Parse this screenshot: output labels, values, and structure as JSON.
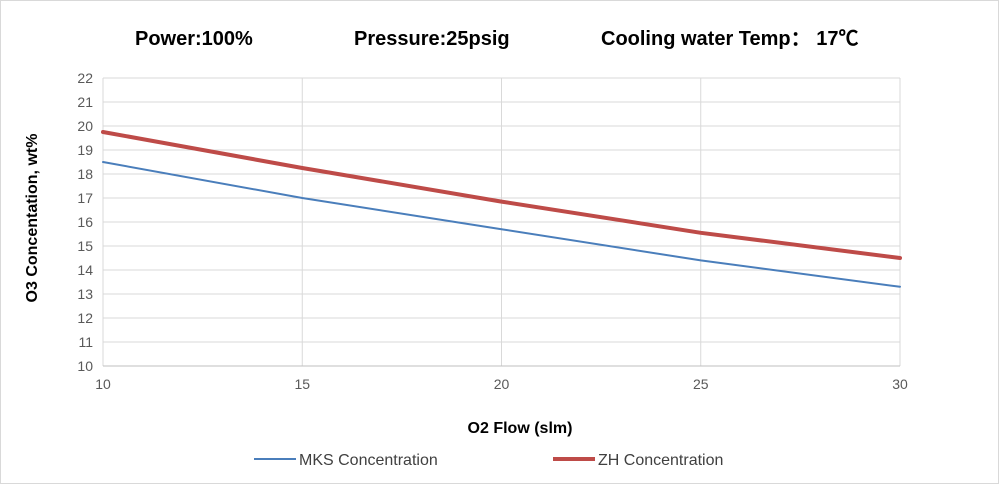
{
  "header": {
    "power": "Power:100%",
    "pressure": "Pressure:25psig",
    "cooling": "Cooling water Temp： 17℃"
  },
  "chart_data": {
    "type": "line",
    "xlabel": "O2 Flow (slm)",
    "ylabel": "O3 Concentation, wt%",
    "xlim": [
      10,
      30
    ],
    "ylim": [
      10,
      22
    ],
    "x_ticks": [
      10,
      15,
      20,
      25,
      30
    ],
    "y_ticks": [
      10,
      11,
      12,
      13,
      14,
      15,
      16,
      17,
      18,
      19,
      20,
      21,
      22
    ],
    "grid": true,
    "legend_position": "bottom",
    "series": [
      {
        "name": "MKS Concentration",
        "color": "#4a7ebb",
        "x": [
          10,
          15,
          20,
          25,
          30
        ],
        "y": [
          18.5,
          17.0,
          15.7,
          14.4,
          13.3
        ]
      },
      {
        "name": "ZH Concentration",
        "color": "#be4b48",
        "x": [
          10,
          15,
          20,
          25,
          30
        ],
        "y": [
          19.75,
          18.25,
          16.85,
          15.55,
          14.5
        ]
      }
    ]
  }
}
